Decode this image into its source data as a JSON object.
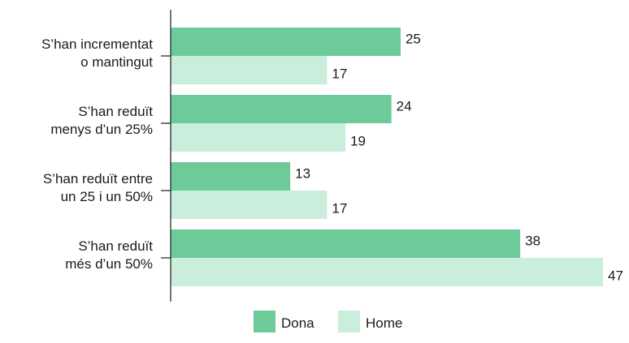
{
  "chart_data": {
    "type": "bar",
    "orientation": "horizontal",
    "categories": [
      [
        "S’han incrementat",
        "o mantingut"
      ],
      [
        "S’han reduït",
        "menys d’un 25%"
      ],
      [
        "S’han reduït entre",
        "un 25 i un 50%"
      ],
      [
        "S’han reduït",
        "més d’un 50%"
      ]
    ],
    "series": [
      {
        "name": "Dona",
        "color": "#6ccb99",
        "values": [
          25,
          24,
          13,
          38
        ]
      },
      {
        "name": "Home",
        "color": "#c9eedb",
        "values": [
          17,
          19,
          17,
          47
        ]
      }
    ],
    "xlim": [
      0,
      50
    ],
    "grid": false,
    "legend": "bottom"
  }
}
